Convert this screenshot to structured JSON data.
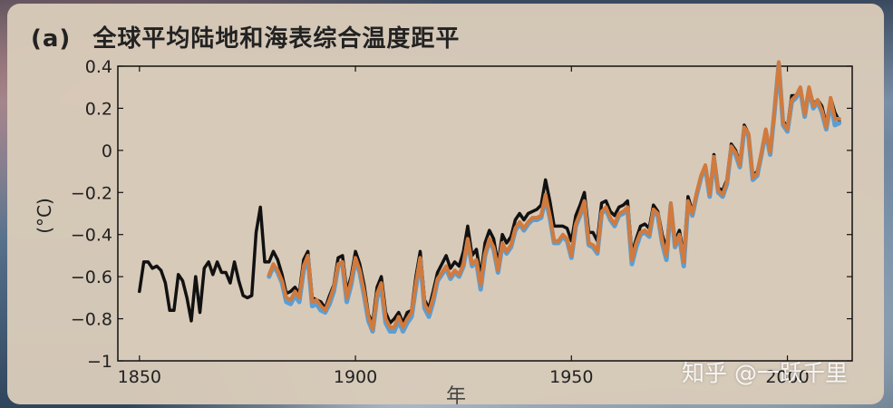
{
  "page": {
    "watermark": "知乎 @一跃千里"
  },
  "chart_data": {
    "type": "line",
    "panel_label": "(a)",
    "title": "全球平均陆地和海表综合温度距平",
    "xlabel": "年",
    "ylabel": "(°C)",
    "xlim": [
      1845,
      2015
    ],
    "ylim": [
      -1,
      0.4
    ],
    "xticks": [
      1850,
      1900,
      1950,
      2000
    ],
    "yticks": [
      0.4,
      0.2,
      0,
      -0.2,
      -0.4,
      -0.6,
      -0.8,
      -1
    ],
    "ytick_labels": [
      "0.4",
      "0.2",
      "0",
      "−0.2",
      "−0.4",
      "−0.6",
      "−0.8",
      "−1"
    ],
    "grid": false,
    "colors": {
      "black_series": "#111111",
      "blue_series": "#5a9fd4",
      "orange_series": "#d27a3c",
      "plot_background": "#d8cab9"
    },
    "series": [
      {
        "color": "#111111",
        "x": [
          1850,
          1851,
          1852,
          1853,
          1854,
          1855,
          1856,
          1857,
          1858,
          1859,
          1860,
          1861,
          1862,
          1863,
          1864,
          1865,
          1866,
          1867,
          1868,
          1869,
          1870,
          1871,
          1872,
          1873,
          1874,
          1875,
          1876,
          1877,
          1878,
          1879,
          1880,
          1881,
          1882,
          1883,
          1884,
          1885,
          1886,
          1887,
          1888,
          1889,
          1890,
          1891,
          1892,
          1893,
          1894,
          1895,
          1896,
          1897,
          1898,
          1899,
          1900,
          1901,
          1902,
          1903,
          1904,
          1905,
          1906,
          1907,
          1908,
          1909,
          1910,
          1911,
          1912,
          1913,
          1914,
          1915,
          1916,
          1917,
          1918,
          1919,
          1920,
          1921,
          1922,
          1923,
          1924,
          1925,
          1926,
          1927,
          1928,
          1929,
          1930,
          1931,
          1932,
          1933,
          1934,
          1935,
          1936,
          1937,
          1938,
          1939,
          1940,
          1941,
          1942,
          1943,
          1944,
          1945,
          1946,
          1947,
          1948,
          1949,
          1950,
          1951,
          1952,
          1953,
          1954,
          1955,
          1956,
          1957,
          1958,
          1959,
          1960,
          1961,
          1962,
          1963,
          1964,
          1965,
          1966,
          1967,
          1968,
          1969,
          1970,
          1971,
          1972,
          1973,
          1974,
          1975,
          1976,
          1977,
          1978,
          1979,
          1980,
          1981,
          1982,
          1983,
          1984,
          1985,
          1986,
          1987,
          1988,
          1989,
          1990,
          1991,
          1992,
          1993,
          1994,
          1995,
          1996,
          1997,
          1998,
          1999,
          2000,
          2001,
          2002,
          2003,
          2004,
          2005,
          2006,
          2007,
          2008,
          2009,
          2010,
          2011,
          2012
        ],
        "values": [
          -0.67,
          -0.53,
          -0.53,
          -0.56,
          -0.55,
          -0.57,
          -0.63,
          -0.76,
          -0.76,
          -0.59,
          -0.62,
          -0.7,
          -0.81,
          -0.6,
          -0.77,
          -0.56,
          -0.53,
          -0.59,
          -0.53,
          -0.58,
          -0.58,
          -0.63,
          -0.53,
          -0.62,
          -0.69,
          -0.7,
          -0.69,
          -0.39,
          -0.27,
          -0.53,
          -0.53,
          -0.48,
          -0.52,
          -0.59,
          -0.68,
          -0.67,
          -0.65,
          -0.68,
          -0.52,
          -0.48,
          -0.7,
          -0.71,
          -0.72,
          -0.75,
          -0.69,
          -0.64,
          -0.51,
          -0.5,
          -0.67,
          -0.6,
          -0.48,
          -0.54,
          -0.64,
          -0.78,
          -0.82,
          -0.65,
          -0.6,
          -0.77,
          -0.82,
          -0.8,
          -0.77,
          -0.82,
          -0.77,
          -0.76,
          -0.6,
          -0.48,
          -0.71,
          -0.75,
          -0.67,
          -0.58,
          -0.54,
          -0.5,
          -0.56,
          -0.53,
          -0.55,
          -0.48,
          -0.36,
          -0.5,
          -0.47,
          -0.6,
          -0.44,
          -0.38,
          -0.42,
          -0.54,
          -0.4,
          -0.44,
          -0.41,
          -0.33,
          -0.3,
          -0.33,
          -0.3,
          -0.29,
          -0.28,
          -0.26,
          -0.14,
          -0.24,
          -0.36,
          -0.36,
          -0.36,
          -0.37,
          -0.43,
          -0.31,
          -0.26,
          -0.2,
          -0.39,
          -0.39,
          -0.43,
          -0.25,
          -0.24,
          -0.29,
          -0.31,
          -0.27,
          -0.26,
          -0.24,
          -0.49,
          -0.42,
          -0.36,
          -0.35,
          -0.37,
          -0.26,
          -0.29,
          -0.4,
          -0.47,
          -0.25,
          -0.43,
          -0.38,
          -0.5,
          -0.22,
          -0.29,
          -0.2,
          -0.13,
          -0.07,
          -0.2,
          -0.02,
          -0.18,
          -0.19,
          -0.14,
          0.03,
          0.0,
          -0.06,
          0.12,
          0.08,
          -0.12,
          -0.1,
          -0.01,
          0.1,
          0.0,
          0.19,
          0.41,
          0.14,
          0.11,
          0.26,
          0.26,
          0.3,
          0.18,
          0.3,
          0.22,
          0.24,
          0.21,
          0.12,
          0.25,
          0.18,
          0.14
        ]
      },
      {
        "color": "#5a9fd4",
        "x": [
          1880,
          1881,
          1882,
          1883,
          1884,
          1885,
          1886,
          1887,
          1888,
          1889,
          1890,
          1891,
          1892,
          1893,
          1894,
          1895,
          1896,
          1897,
          1898,
          1899,
          1900,
          1901,
          1902,
          1903,
          1904,
          1905,
          1906,
          1907,
          1908,
          1909,
          1910,
          1911,
          1912,
          1913,
          1914,
          1915,
          1916,
          1917,
          1918,
          1919,
          1920,
          1921,
          1922,
          1923,
          1924,
          1925,
          1926,
          1927,
          1928,
          1929,
          1930,
          1931,
          1932,
          1933,
          1934,
          1935,
          1936,
          1937,
          1938,
          1939,
          1940,
          1941,
          1942,
          1943,
          1944,
          1945,
          1946,
          1947,
          1948,
          1949,
          1950,
          1951,
          1952,
          1953,
          1954,
          1955,
          1956,
          1957,
          1958,
          1959,
          1960,
          1961,
          1962,
          1963,
          1964,
          1965,
          1966,
          1967,
          1968,
          1969,
          1970,
          1971,
          1972,
          1973,
          1974,
          1975,
          1976,
          1977,
          1978,
          1979,
          1980,
          1981,
          1982,
          1983,
          1984,
          1985,
          1986,
          1987,
          1988,
          1989,
          1990,
          1991,
          1992,
          1993,
          1994,
          1995,
          1996,
          1997,
          1998,
          1999,
          2000,
          2001,
          2002,
          2003,
          2004,
          2005,
          2006,
          2007,
          2008,
          2009,
          2010,
          2011,
          2012
        ],
        "values": [
          -0.6,
          -0.55,
          -0.58,
          -0.63,
          -0.72,
          -0.73,
          -0.69,
          -0.72,
          -0.57,
          -0.51,
          -0.74,
          -0.73,
          -0.76,
          -0.77,
          -0.73,
          -0.67,
          -0.55,
          -0.54,
          -0.72,
          -0.64,
          -0.52,
          -0.58,
          -0.69,
          -0.81,
          -0.86,
          -0.7,
          -0.65,
          -0.82,
          -0.86,
          -0.86,
          -0.81,
          -0.86,
          -0.82,
          -0.79,
          -0.65,
          -0.52,
          -0.75,
          -0.79,
          -0.72,
          -0.62,
          -0.59,
          -0.56,
          -0.61,
          -0.58,
          -0.6,
          -0.55,
          -0.43,
          -0.55,
          -0.53,
          -0.66,
          -0.5,
          -0.43,
          -0.47,
          -0.58,
          -0.45,
          -0.49,
          -0.46,
          -0.38,
          -0.35,
          -0.38,
          -0.35,
          -0.33,
          -0.33,
          -0.32,
          -0.23,
          -0.32,
          -0.44,
          -0.44,
          -0.41,
          -0.43,
          -0.51,
          -0.36,
          -0.31,
          -0.25,
          -0.45,
          -0.46,
          -0.49,
          -0.3,
          -0.28,
          -0.33,
          -0.36,
          -0.31,
          -0.3,
          -0.28,
          -0.54,
          -0.46,
          -0.4,
          -0.39,
          -0.41,
          -0.29,
          -0.31,
          -0.44,
          -0.52,
          -0.26,
          -0.46,
          -0.41,
          -0.55,
          -0.25,
          -0.31,
          -0.21,
          -0.13,
          -0.08,
          -0.22,
          -0.04,
          -0.2,
          -0.22,
          -0.16,
          0.01,
          -0.02,
          -0.08,
          0.1,
          0.07,
          -0.14,
          -0.12,
          -0.02,
          0.09,
          -0.02,
          0.18,
          0.41,
          0.12,
          0.09,
          0.23,
          0.25,
          0.29,
          0.16,
          0.29,
          0.2,
          0.23,
          0.18,
          0.1,
          0.23,
          0.12,
          0.13
        ]
      },
      {
        "color": "#d27a3c",
        "x": [
          1880,
          1881,
          1882,
          1883,
          1884,
          1885,
          1886,
          1887,
          1888,
          1889,
          1890,
          1891,
          1892,
          1893,
          1894,
          1895,
          1896,
          1897,
          1898,
          1899,
          1900,
          1901,
          1902,
          1903,
          1904,
          1905,
          1906,
          1907,
          1908,
          1909,
          1910,
          1911,
          1912,
          1913,
          1914,
          1915,
          1916,
          1917,
          1918,
          1919,
          1920,
          1921,
          1922,
          1923,
          1924,
          1925,
          1926,
          1927,
          1928,
          1929,
          1930,
          1931,
          1932,
          1933,
          1934,
          1935,
          1936,
          1937,
          1938,
          1939,
          1940,
          1941,
          1942,
          1943,
          1944,
          1945,
          1946,
          1947,
          1948,
          1949,
          1950,
          1951,
          1952,
          1953,
          1954,
          1955,
          1956,
          1957,
          1958,
          1959,
          1960,
          1961,
          1962,
          1963,
          1964,
          1965,
          1966,
          1967,
          1968,
          1969,
          1970,
          1971,
          1972,
          1973,
          1974,
          1975,
          1976,
          1977,
          1978,
          1979,
          1980,
          1981,
          1982,
          1983,
          1984,
          1985,
          1986,
          1987,
          1988,
          1989,
          1990,
          1991,
          1992,
          1993,
          1994,
          1995,
          1996,
          1997,
          1998,
          1999,
          2000,
          2001,
          2002,
          2003,
          2004,
          2005,
          2006,
          2007,
          2008,
          2009,
          2010,
          2011,
          2012
        ],
        "values": [
          -0.59,
          -0.54,
          -0.57,
          -0.62,
          -0.7,
          -0.71,
          -0.67,
          -0.7,
          -0.55,
          -0.5,
          -0.72,
          -0.71,
          -0.74,
          -0.76,
          -0.71,
          -0.65,
          -0.54,
          -0.53,
          -0.7,
          -0.62,
          -0.51,
          -0.57,
          -0.67,
          -0.79,
          -0.85,
          -0.68,
          -0.63,
          -0.8,
          -0.84,
          -0.84,
          -0.79,
          -0.84,
          -0.8,
          -0.77,
          -0.63,
          -0.51,
          -0.73,
          -0.77,
          -0.7,
          -0.61,
          -0.58,
          -0.55,
          -0.6,
          -0.57,
          -0.59,
          -0.54,
          -0.42,
          -0.54,
          -0.52,
          -0.64,
          -0.49,
          -0.42,
          -0.46,
          -0.57,
          -0.44,
          -0.48,
          -0.45,
          -0.37,
          -0.34,
          -0.37,
          -0.34,
          -0.32,
          -0.32,
          -0.31,
          -0.21,
          -0.31,
          -0.43,
          -0.43,
          -0.4,
          -0.42,
          -0.5,
          -0.35,
          -0.3,
          -0.24,
          -0.44,
          -0.45,
          -0.48,
          -0.29,
          -0.27,
          -0.32,
          -0.35,
          -0.3,
          -0.29,
          -0.27,
          -0.52,
          -0.44,
          -0.39,
          -0.38,
          -0.4,
          -0.28,
          -0.3,
          -0.43,
          -0.5,
          -0.25,
          -0.45,
          -0.4,
          -0.53,
          -0.24,
          -0.3,
          -0.2,
          -0.12,
          -0.07,
          -0.21,
          -0.03,
          -0.19,
          -0.21,
          -0.15,
          0.02,
          -0.01,
          -0.07,
          0.11,
          0.08,
          -0.13,
          -0.11,
          -0.01,
          0.1,
          -0.01,
          0.19,
          0.42,
          0.13,
          0.1,
          0.24,
          0.26,
          0.3,
          0.17,
          0.3,
          0.21,
          0.24,
          0.19,
          0.11,
          0.25,
          0.15,
          0.15
        ]
      }
    ]
  }
}
